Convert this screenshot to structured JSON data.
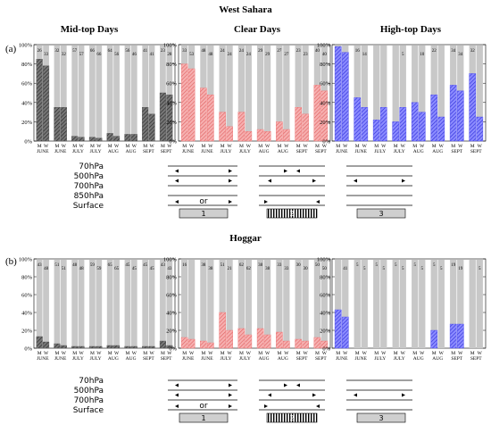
{
  "figure": {
    "regions": [
      {
        "title": "West Sahara",
        "row_label": "(a)"
      },
      {
        "title": "Hoggar",
        "row_label": "(b)"
      }
    ],
    "column_titles": [
      "Mid-top Days",
      "Clear Days",
      "High-top Days"
    ],
    "level_labels": [
      "70hPa",
      "500hPa",
      "700hPa",
      "850hPa",
      "Surface"
    ],
    "level_labels_b": [
      "70hPa",
      "500hPa",
      "700hPa",
      "Surface"
    ],
    "pattern_boxes": [
      "1",
      "2",
      "3"
    ],
    "or_label": "or",
    "months": [
      "JUNE",
      "JUNE",
      "JULY",
      "JULY",
      "AUG",
      "AUG",
      "SEPT",
      "SEPT"
    ],
    "month_label_positions": [
      "JUNE",
      "JUNE",
      "JULY",
      "JULY",
      "AUG",
      "AUG",
      "SEPT",
      "SEPT"
    ],
    "bar_letters": [
      "M",
      "W"
    ],
    "yticks": [
      "0%",
      "20%",
      "40%",
      "60%",
      "80%",
      "100%"
    ]
  },
  "chart_data": [
    {
      "type": "bar",
      "region": "West Sahara",
      "title": "Mid-top Days",
      "categories": [
        "M",
        "W",
        "M",
        "W",
        "M",
        "W",
        "M",
        "W",
        "M",
        "W",
        "M",
        "W",
        "M",
        "W",
        "M",
        "W"
      ],
      "values": [
        85,
        78,
        35,
        35,
        5,
        4,
        4,
        3,
        8,
        5,
        7,
        7,
        35,
        28,
        50,
        48
      ],
      "counts": [
        "26",
        "33",
        "32",
        "32",
        "57",
        "57",
        "66",
        "66",
        "64",
        "56",
        "56",
        "46",
        "41",
        "41",
        "23",
        "28"
      ],
      "ylim": [
        0,
        100
      ],
      "color": "#555555"
    },
    {
      "type": "bar",
      "region": "West Sahara",
      "title": "Clear Days",
      "categories": [
        "M",
        "W",
        "M",
        "W",
        "M",
        "W",
        "M",
        "W",
        "M",
        "W",
        "M",
        "W",
        "M",
        "W",
        "M",
        "W"
      ],
      "values": [
        80,
        75,
        55,
        48,
        30,
        15,
        30,
        10,
        12,
        10,
        20,
        12,
        35,
        28,
        58,
        52
      ],
      "counts": [
        "33",
        "53",
        "48",
        "48",
        "24",
        "24",
        "24",
        "24",
        "29",
        "29",
        "27",
        "27",
        "23",
        "23",
        "40",
        "40"
      ],
      "ylim": [
        0,
        100
      ],
      "color": "#f08080"
    },
    {
      "type": "bar",
      "region": "West Sahara",
      "title": "High-top Days",
      "categories": [
        "M",
        "W",
        "M",
        "W",
        "M",
        "W",
        "M",
        "W",
        "M",
        "W",
        "M",
        "W",
        "M",
        "W",
        "M",
        "W"
      ],
      "values": [
        98,
        92,
        45,
        35,
        22,
        35,
        20,
        35,
        40,
        30,
        48,
        25,
        58,
        52,
        70,
        25
      ],
      "counts": [
        "",
        "",
        "16",
        "14",
        "",
        "",
        "",
        "5",
        "",
        "10",
        "22",
        "",
        "34",
        "34",
        "32",
        ""
      ],
      "ylim": [
        0,
        100
      ],
      "color": "#5a5aee"
    },
    {
      "type": "bar",
      "region": "Hoggar",
      "title": "Mid-top Days",
      "categories": [
        "M",
        "W",
        "M",
        "W",
        "M",
        "W",
        "M",
        "W",
        "M",
        "W",
        "M",
        "W",
        "M",
        "W",
        "M",
        "W"
      ],
      "values": [
        13,
        7,
        5,
        3,
        2,
        2,
        2,
        2,
        3,
        3,
        2,
        2,
        2,
        2,
        8,
        3
      ],
      "counts": [
        "43",
        "48",
        "51",
        "51",
        "48",
        "48",
        "59",
        "59",
        "65",
        "65",
        "45",
        "45",
        "45",
        "45",
        "43",
        "43"
      ],
      "ylim": [
        0,
        100
      ],
      "color": "#555555"
    },
    {
      "type": "bar",
      "region": "Hoggar",
      "title": "Clear Days",
      "categories": [
        "M",
        "W",
        "M",
        "W",
        "M",
        "W",
        "M",
        "W",
        "M",
        "W",
        "M",
        "W",
        "M",
        "W",
        "M",
        "W"
      ],
      "values": [
        12,
        10,
        8,
        6,
        40,
        20,
        22,
        15,
        22,
        15,
        18,
        8,
        10,
        8,
        12,
        8
      ],
      "counts": [
        "16",
        "",
        "38",
        "38",
        "51",
        "21",
        "62",
        "62",
        "38",
        "38",
        "33",
        "33",
        "30",
        "30",
        "50",
        "50"
      ],
      "ylim": [
        0,
        100
      ],
      "color": "#f08080"
    },
    {
      "type": "bar",
      "region": "Hoggar",
      "title": "High-top Days",
      "categories": [
        "M",
        "W",
        "M",
        "W",
        "M",
        "W",
        "M",
        "W",
        "M",
        "W",
        "M",
        "W",
        "M",
        "W",
        "M",
        "W"
      ],
      "values": [
        43,
        35,
        0,
        0,
        0,
        0,
        0,
        0,
        0,
        0,
        20,
        0,
        27,
        27,
        0,
        0
      ],
      "counts": [
        "",
        "41",
        "5",
        "5",
        "5",
        "5",
        "5",
        "5",
        "5",
        "5",
        "5",
        "5",
        "19",
        "19",
        "",
        "5"
      ],
      "ylim": [
        0,
        100
      ],
      "color": "#5a5aee"
    }
  ]
}
